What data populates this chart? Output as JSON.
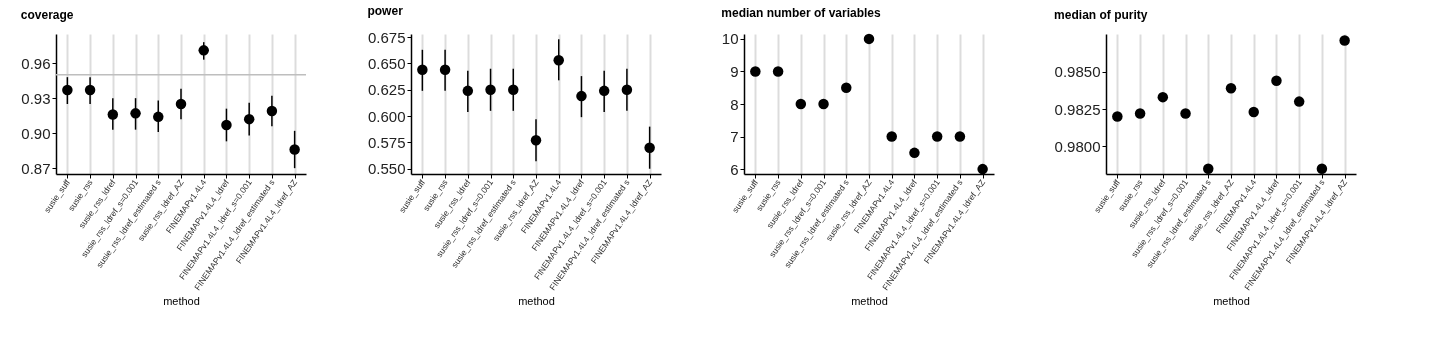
{
  "chart_data": [
    {
      "type": "scatter",
      "title": "coverage",
      "xlabel": "method",
      "categories": [
        "susie_suff",
        "susie_rss",
        "susie_rss_ldref",
        "susie_rss_ldref_s=0.001",
        "susie_rss_ldref_estimated s",
        "susie_rss_ldref_AZ",
        "FINEMAPv1.4L4",
        "FINEMAPv1.4L4_ldref",
        "FINEMAPv1.4L4_ldref_s=0.001",
        "FINEMAPv1.4L4_ldref_estimated s",
        "FINEMAPv1.4L4_ldref_AZ"
      ],
      "series": [
        {
          "color": "#000000",
          "values": [
            0.937,
            0.937,
            0.916,
            0.917,
            0.914,
            0.925,
            0.971,
            0.907,
            0.912,
            0.919,
            0.886
          ],
          "errors": [
            [
              0.925,
              0.948
            ],
            [
              0.925,
              0.948
            ],
            [
              0.903,
              0.93
            ],
            [
              0.903,
              0.93
            ],
            [
              0.901,
              0.928
            ],
            [
              0.912,
              0.938
            ],
            [
              0.963,
              0.978
            ],
            [
              0.893,
              0.921
            ],
            [
              0.898,
              0.926
            ],
            [
              0.906,
              0.932
            ],
            [
              0.87,
              0.902
            ]
          ]
        }
      ],
      "ylim": [
        0.865,
        0.985
      ],
      "yticks": [
        0.87,
        {
          "value": 0.9,
          "label": "0.90"
        },
        0.93,
        0.96
      ],
      "ref_lines": [
        {
          "axis": "y",
          "value": 0.95,
          "color": "#bebebe"
        }
      ],
      "grid": "x",
      "marker": "circle"
    },
    {
      "type": "scatter",
      "title": "power",
      "xlabel": "method",
      "categories": [
        "susie_suff",
        "susie_rss",
        "susie_rss_ldref",
        "susie_rss_ldref_s=0.001",
        "susie_rss_ldref_estimated s",
        "susie_rss_ldref_AZ",
        "FINEMAPv1.4L4",
        "FINEMAPv1.4L4_ldref",
        "FINEMAPv1.4L4_ldref_s=0.001",
        "FINEMAPv1.4L4_ldref_estimated s",
        "FINEMAPv1.4L4_ldref_AZ"
      ],
      "series": [
        {
          "color": "#000000",
          "values": [
            0.644,
            0.644,
            0.624,
            0.625,
            0.625,
            0.577,
            0.653,
            0.619,
            0.624,
            0.625,
            0.57
          ],
          "errors": [
            [
              0.624,
              0.663
            ],
            [
              0.624,
              0.663
            ],
            [
              0.604,
              0.643
            ],
            [
              0.605,
              0.645
            ],
            [
              0.605,
              0.645
            ],
            [
              0.557,
              0.597
            ],
            [
              0.634,
              0.673
            ],
            [
              0.599,
              0.638
            ],
            [
              0.604,
              0.643
            ],
            [
              0.605,
              0.645
            ],
            [
              0.55,
              0.59
            ]
          ]
        }
      ],
      "ylim": [
        0.545,
        0.678
      ],
      "yticks": [
        {
          "value": 0.55,
          "label": "0.550"
        },
        0.575,
        {
          "value": 0.6,
          "label": "0.600"
        },
        0.625,
        {
          "value": 0.65,
          "label": "0.650"
        },
        0.675
      ],
      "grid": "x",
      "marker": "circle"
    },
    {
      "type": "scatter",
      "title": "median number of variables",
      "xlabel": "method",
      "categories": [
        "susie_suff",
        "susie_rss",
        "susie_rss_ldref",
        "susie_rss_ldref_s=0.001",
        "susie_rss_ldref_estimated s",
        "susie_rss_ldref_AZ",
        "FINEMAPv1.4L4",
        "FINEMAPv1.4L4_ldref",
        "FINEMAPv1.4L4_ldref_s=0.001",
        "FINEMAPv1.4L4_ldref_estimated s",
        "FINEMAPv1.4L4_ldref_AZ"
      ],
      "series": [
        {
          "color": "#000000",
          "values": [
            9,
            9,
            8,
            8,
            8.5,
            10,
            7,
            6.5,
            7,
            7,
            6
          ]
        }
      ],
      "ylim": [
        5.85,
        10.15
      ],
      "yticks": [
        6,
        7,
        8,
        9,
        10
      ],
      "grid": "x",
      "marker": "circle"
    },
    {
      "type": "scatter",
      "title": "median of purity",
      "xlabel": "method",
      "categories": [
        "susie_suff",
        "susie_rss",
        "susie_rss_ldref",
        "susie_rss_ldref_s=0.001",
        "susie_rss_ldref_estimated s",
        "susie_rss_ldref_AZ",
        "FINEMAPv1.4L4",
        "FINEMAPv1.4L4_ldref",
        "FINEMAPv1.4L4_ldref_s=0.001",
        "FINEMAPv1.4L4_ldref_estimated s",
        "FINEMAPv1.4L4_ldref_AZ"
      ],
      "series": [
        {
          "color": "#000000",
          "values": [
            0.982,
            0.9822,
            0.9833,
            0.9822,
            0.9785,
            0.9839,
            0.9823,
            0.9844,
            0.983,
            0.9785,
            0.9871
          ]
        }
      ],
      "ylim": [
        0.97815,
        0.98753
      ],
      "yticks": [
        {
          "value": 0.98,
          "label": "0.9800"
        },
        0.9825,
        {
          "value": 0.985,
          "label": "0.9850"
        }
      ],
      "grid": "x",
      "marker": "circle"
    }
  ]
}
